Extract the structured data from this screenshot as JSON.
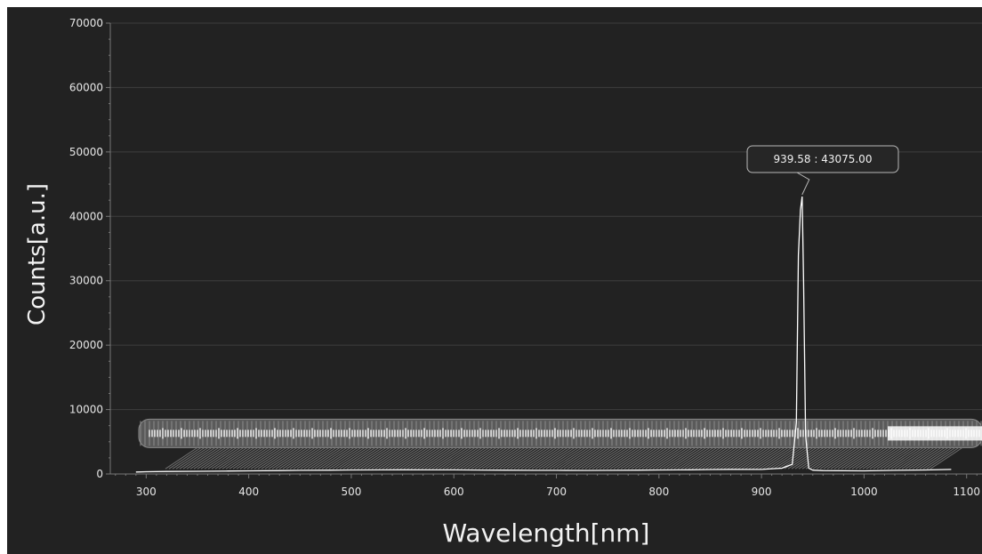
{
  "chart_data": {
    "type": "line",
    "title": "",
    "xlabel": "Wavelength[nm]",
    "ylabel": "Counts[a.u.]",
    "xlim": [
      265,
      1115
    ],
    "ylim": [
      0,
      70000
    ],
    "x_ticks": [
      300,
      400,
      500,
      600,
      700,
      800,
      900,
      1000,
      1100
    ],
    "y_ticks": [
      0,
      10000,
      20000,
      30000,
      40000,
      50000,
      60000,
      70000
    ],
    "grid": true,
    "series": [
      {
        "x": [
          290,
          300,
          320,
          350,
          380,
          400,
          430,
          450,
          480,
          500,
          530,
          550,
          580,
          600,
          630,
          650,
          680,
          700,
          730,
          750,
          780,
          800,
          830,
          850,
          870,
          900,
          920,
          930,
          934,
          936,
          938,
          939.58,
          941,
          943,
          946,
          950,
          960,
          1000,
          1030,
          1060,
          1085
        ],
        "y": [
          300,
          350,
          380,
          420,
          450,
          480,
          520,
          560,
          600,
          620,
          640,
          650,
          640,
          630,
          610,
          590,
          570,
          560,
          550,
          560,
          590,
          620,
          650,
          690,
          720,
          700,
          900,
          1500,
          8000,
          34000,
          41000,
          43075,
          30000,
          6000,
          900,
          600,
          520,
          480,
          560,
          620,
          700
        ]
      }
    ],
    "tooltip": {
      "x": 939.58,
      "y": 43075.0,
      "text": "939.58 : 43075.00"
    },
    "colors": {
      "background": "#222222",
      "line": "#ffffff",
      "grid": "#3e3e3e",
      "text": "#e6e6e6",
      "label_band": "#9a9a9a"
    }
  }
}
